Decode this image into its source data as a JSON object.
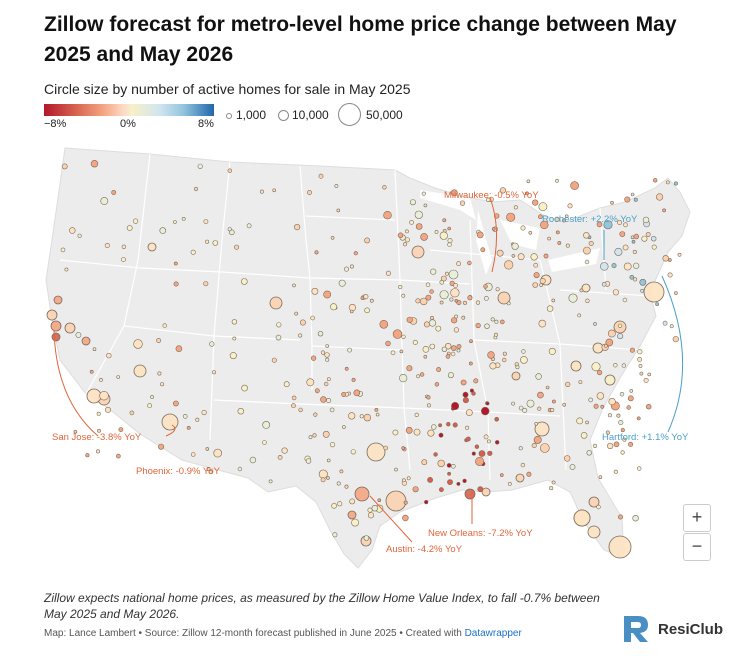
{
  "title": "Zillow forecast for metro-level home price change between May 2025 and May 2026",
  "subtitle": "Circle size by number of active homes for sale in May 2025",
  "color_scale": {
    "min_label": "−8%",
    "mid_label": "0%",
    "max_label": "8%",
    "colors": [
      "#b2182b",
      "#d6604d",
      "#f4a582",
      "#fddbc7",
      "#f7f0c8",
      "#d1e5f0",
      "#92c5de",
      "#2166ac"
    ]
  },
  "size_legend": [
    {
      "label": "1,000",
      "homes": 1000
    },
    {
      "label": "10,000",
      "homes": 10000
    },
    {
      "label": "50,000",
      "homes": 50000
    }
  ],
  "annotations": {
    "milwaukee": "Milwaukee: -0.5% YoY",
    "rochester": "Rochester: +2.2% YoY",
    "san_jose": "San Jose: -3.8% YoY",
    "phoenix": "Phoenix: -0.9% YoY",
    "hartford": "Hartford: +1.1% YoY",
    "new_orleans": "New Orleans: -7.2% YoY",
    "austin": "Austin: -4.2% YoY"
  },
  "zoom": {
    "in": "+",
    "out": "−"
  },
  "note": "Zillow expects national home prices, as measured by the Zillow Home Value Index, to fall -0.7% between May 2025 and May 2026.",
  "source": {
    "text": "Map: Lance Lambert • Source: Zillow 12-month forecast published in June 2025 • Created with ",
    "link": "Datawrapper"
  },
  "logo": {
    "text": "ResiClub"
  },
  "colors": {
    "annotation_red": "#e0653a",
    "annotation_blue": "#4a9fc8",
    "map_fill": "#ececec"
  }
}
